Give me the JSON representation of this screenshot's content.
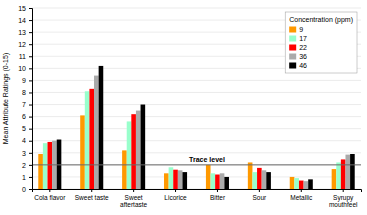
{
  "chart_data": {
    "type": "bar",
    "categories": [
      "Cola flavor",
      "Sweet taste",
      "Sweet\naftertaste",
      "Licorice",
      "Bitter",
      "Sour",
      "Metallic",
      "Syrupy\nmouthfeel"
    ],
    "series": [
      {
        "name": "9",
        "color": "#FF9900",
        "values": [
          2.9,
          6.1,
          3.2,
          1.3,
          2.0,
          2.2,
          1.0,
          1.65
        ]
      },
      {
        "name": "17",
        "color": "#99FFCC",
        "values": [
          3.8,
          8.1,
          5.6,
          1.8,
          1.3,
          1.4,
          0.9,
          2.2
        ]
      },
      {
        "name": "22",
        "color": "#FF0000",
        "values": [
          3.9,
          8.3,
          6.2,
          1.6,
          1.2,
          1.75,
          0.7,
          2.45
        ]
      },
      {
        "name": "36",
        "color": "#AAAAAA",
        "values": [
          4.0,
          9.4,
          6.5,
          1.55,
          1.3,
          1.55,
          0.65,
          2.85
        ]
      },
      {
        "name": "46",
        "color": "#000000",
        "values": [
          4.1,
          10.2,
          7.0,
          1.4,
          1.0,
          1.4,
          0.8,
          2.9
        ]
      }
    ],
    "y_label": "Mean Attribute Ratings (0-15)",
    "ylim": [
      0,
      15
    ],
    "yticks": [
      0,
      1,
      2,
      3,
      4,
      5,
      6,
      7,
      8,
      9,
      10,
      11,
      12,
      13,
      14,
      15
    ],
    "annotations": [
      {
        "y": 2.0,
        "text": "Trace level",
        "color": "#696969"
      }
    ],
    "legend_title": "Concentration (ppm)",
    "legend": "upper right",
    "grid": true
  }
}
